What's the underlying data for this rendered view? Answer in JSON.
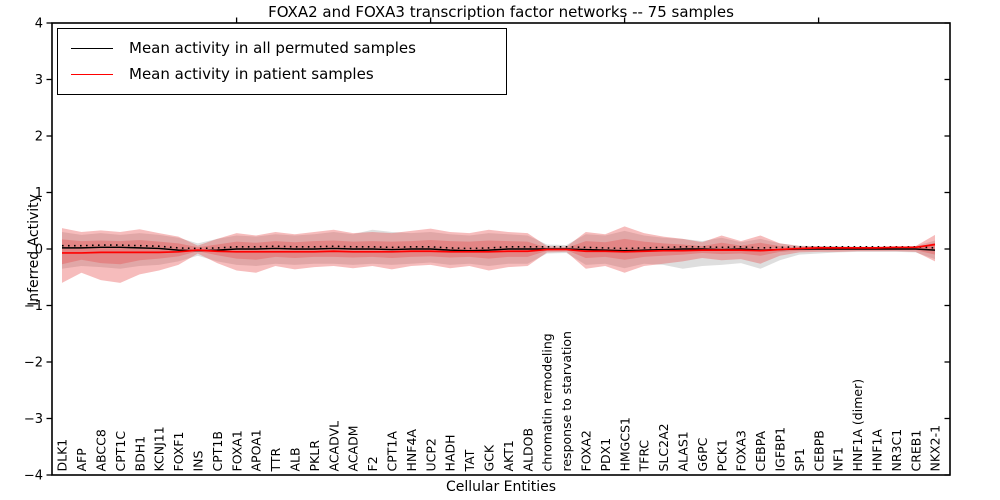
{
  "chart_data": {
    "type": "line",
    "title": "FOXA2 and FOXA3 transcription factor networks -- 75 samples",
    "xlabel": "Cellular Entities",
    "ylabel": "Inferred Activity",
    "ylim": [
      -4,
      4
    ],
    "grid": false,
    "legend_position": "upper-left",
    "yticks": [
      {
        "value": 4,
        "label": "4"
      },
      {
        "value": 3,
        "label": "3"
      },
      {
        "value": 2,
        "label": "2"
      },
      {
        "value": 1,
        "label": "1"
      },
      {
        "value": 0,
        "label": "0"
      },
      {
        "value": -1,
        "label": "−1"
      },
      {
        "value": -2,
        "label": "−2"
      },
      {
        "value": -3,
        "label": "−3"
      },
      {
        "value": -4,
        "label": "−4"
      }
    ],
    "top_tick_indices": [
      9,
      19,
      29,
      39
    ],
    "categories": [
      "DLK1",
      "AFP",
      "ABCC8",
      "CPT1C",
      "BDH1",
      "KCNJ11",
      "FOXF1",
      "INS",
      "CPT1B",
      "FOXA1",
      "APOA1",
      "TTR",
      "ALB",
      "PKLR",
      "ACADVL",
      "ACADM",
      "F2",
      "CPT1A",
      "HNF4A",
      "UCP2",
      "HADH",
      "TAT",
      "GCK",
      "AKT1",
      "ALDOB",
      "chromatin remodeling",
      "response to starvation",
      "FOXA2",
      "PDX1",
      "HMGCS1",
      "TFRC",
      "SLC2A2",
      "ALAS1",
      "G6PC",
      "PCK1",
      "FOXA3",
      "CEBPA",
      "IGFBP1",
      "SP1",
      "CEBPB",
      "NF1",
      "HNF1A (dimer)",
      "HNF1A",
      "NR3C1",
      "CREB1",
      "NKX2-1"
    ],
    "legend": {
      "entries": [
        {
          "label": "Mean activity in all permuted samples",
          "color": "#000000"
        },
        {
          "label": "Mean activity in patient samples",
          "color": "#ff0000"
        }
      ]
    },
    "series": [
      {
        "name": "permuted_mean",
        "color": "#000000",
        "style": "solid-with-dot-markers",
        "values": [
          0.02,
          0.02,
          0.03,
          0.03,
          0.02,
          0.01,
          -0.02,
          -0.03,
          -0.02,
          0.0,
          0.0,
          0.01,
          0.0,
          0.0,
          0.01,
          0.0,
          0.0,
          -0.01,
          0.0,
          0.0,
          -0.02,
          -0.03,
          -0.02,
          0.0,
          0.0,
          0.0,
          0.0,
          -0.01,
          -0.02,
          -0.03,
          -0.02,
          -0.01,
          0.0,
          0.0,
          -0.01,
          0.0,
          -0.02,
          -0.01,
          0.0,
          0.0,
          0.0,
          0.0,
          0.0,
          0.0,
          0.0,
          -0.02
        ]
      },
      {
        "name": "patient_mean",
        "color": "#ff0000",
        "style": "solid",
        "values": [
          -0.07,
          -0.07,
          -0.06,
          -0.06,
          -0.06,
          -0.06,
          -0.05,
          -0.02,
          -0.04,
          -0.05,
          -0.05,
          -0.05,
          -0.05,
          -0.05,
          -0.04,
          -0.05,
          -0.05,
          -0.05,
          -0.04,
          -0.04,
          -0.05,
          -0.05,
          -0.05,
          -0.04,
          -0.04,
          -0.01,
          -0.01,
          -0.04,
          -0.04,
          -0.05,
          -0.04,
          -0.03,
          -0.03,
          -0.02,
          -0.02,
          -0.02,
          -0.03,
          -0.01,
          0.01,
          0.02,
          0.02,
          0.02,
          0.02,
          0.03,
          0.03,
          0.08
        ]
      }
    ],
    "bands": [
      {
        "name": "permuted-spread",
        "color": "#999999",
        "opacity": 0.32,
        "upper": [
          0.3,
          0.25,
          0.28,
          0.25,
          0.28,
          0.25,
          0.2,
          0.1,
          0.18,
          0.24,
          0.22,
          0.26,
          0.24,
          0.26,
          0.3,
          0.26,
          0.34,
          0.3,
          0.28,
          0.3,
          0.26,
          0.24,
          0.28,
          0.26,
          0.24,
          0.08,
          0.07,
          0.26,
          0.24,
          0.32,
          0.24,
          0.2,
          0.18,
          0.14,
          0.2,
          0.12,
          0.18,
          0.1,
          0.06,
          0.05,
          0.05,
          0.04,
          0.04,
          0.04,
          0.05,
          0.15
        ],
        "lower": [
          -0.35,
          -0.3,
          -0.32,
          -0.35,
          -0.3,
          -0.28,
          -0.22,
          -0.12,
          -0.22,
          -0.28,
          -0.3,
          -0.26,
          -0.28,
          -0.26,
          -0.26,
          -0.28,
          -0.26,
          -0.28,
          -0.26,
          -0.24,
          -0.28,
          -0.26,
          -0.3,
          -0.26,
          -0.26,
          -0.08,
          -0.07,
          -0.28,
          -0.26,
          -0.34,
          -0.26,
          -0.28,
          -0.35,
          -0.3,
          -0.28,
          -0.25,
          -0.35,
          -0.2,
          -0.1,
          -0.08,
          -0.06,
          -0.05,
          -0.05,
          -0.05,
          -0.06,
          -0.18
        ]
      },
      {
        "name": "patient-spread-outer",
        "color": "#e84f4f",
        "opacity": 0.38,
        "upper": [
          0.37,
          0.3,
          0.33,
          0.3,
          0.35,
          0.28,
          0.22,
          0.06,
          0.18,
          0.28,
          0.24,
          0.3,
          0.26,
          0.3,
          0.34,
          0.28,
          0.3,
          0.28,
          0.32,
          0.36,
          0.3,
          0.28,
          0.34,
          0.3,
          0.28,
          0.05,
          0.04,
          0.3,
          0.26,
          0.4,
          0.28,
          0.22,
          0.18,
          0.12,
          0.24,
          0.14,
          0.24,
          0.1,
          0.05,
          0.05,
          0.04,
          0.04,
          0.04,
          0.04,
          0.05,
          0.25
        ],
        "lower": [
          -0.6,
          -0.42,
          -0.55,
          -0.6,
          -0.45,
          -0.38,
          -0.28,
          -0.08,
          -0.25,
          -0.38,
          -0.42,
          -0.3,
          -0.36,
          -0.32,
          -0.3,
          -0.34,
          -0.3,
          -0.36,
          -0.3,
          -0.28,
          -0.34,
          -0.3,
          -0.38,
          -0.32,
          -0.3,
          -0.06,
          -0.05,
          -0.35,
          -0.3,
          -0.42,
          -0.3,
          -0.26,
          -0.22,
          -0.16,
          -0.2,
          -0.18,
          -0.26,
          -0.12,
          -0.06,
          -0.05,
          -0.05,
          -0.04,
          -0.04,
          -0.04,
          -0.05,
          -0.22
        ]
      },
      {
        "name": "patient-spread-inner",
        "color": "#e84f4f",
        "opacity": 0.38,
        "upper": [
          0.17,
          0.14,
          0.15,
          0.14,
          0.16,
          0.13,
          0.1,
          0.03,
          0.08,
          0.13,
          0.11,
          0.14,
          0.12,
          0.14,
          0.15,
          0.13,
          0.14,
          0.13,
          0.14,
          0.16,
          0.14,
          0.13,
          0.15,
          0.14,
          0.13,
          0.02,
          0.02,
          0.14,
          0.12,
          0.18,
          0.13,
          0.1,
          0.08,
          0.05,
          0.11,
          0.06,
          0.11,
          0.05,
          0.02,
          0.02,
          0.02,
          0.02,
          0.02,
          0.02,
          0.02,
          0.11
        ],
        "lower": [
          -0.27,
          -0.19,
          -0.25,
          -0.27,
          -0.2,
          -0.17,
          -0.13,
          -0.04,
          -0.11,
          -0.17,
          -0.19,
          -0.14,
          -0.16,
          -0.14,
          -0.14,
          -0.15,
          -0.14,
          -0.16,
          -0.14,
          -0.13,
          -0.15,
          -0.14,
          -0.17,
          -0.14,
          -0.14,
          -0.03,
          -0.02,
          -0.16,
          -0.14,
          -0.19,
          -0.14,
          -0.12,
          -0.1,
          -0.07,
          -0.09,
          -0.08,
          -0.12,
          -0.05,
          -0.03,
          -0.02,
          -0.02,
          -0.02,
          -0.02,
          -0.02,
          -0.02,
          -0.1
        ]
      }
    ]
  }
}
